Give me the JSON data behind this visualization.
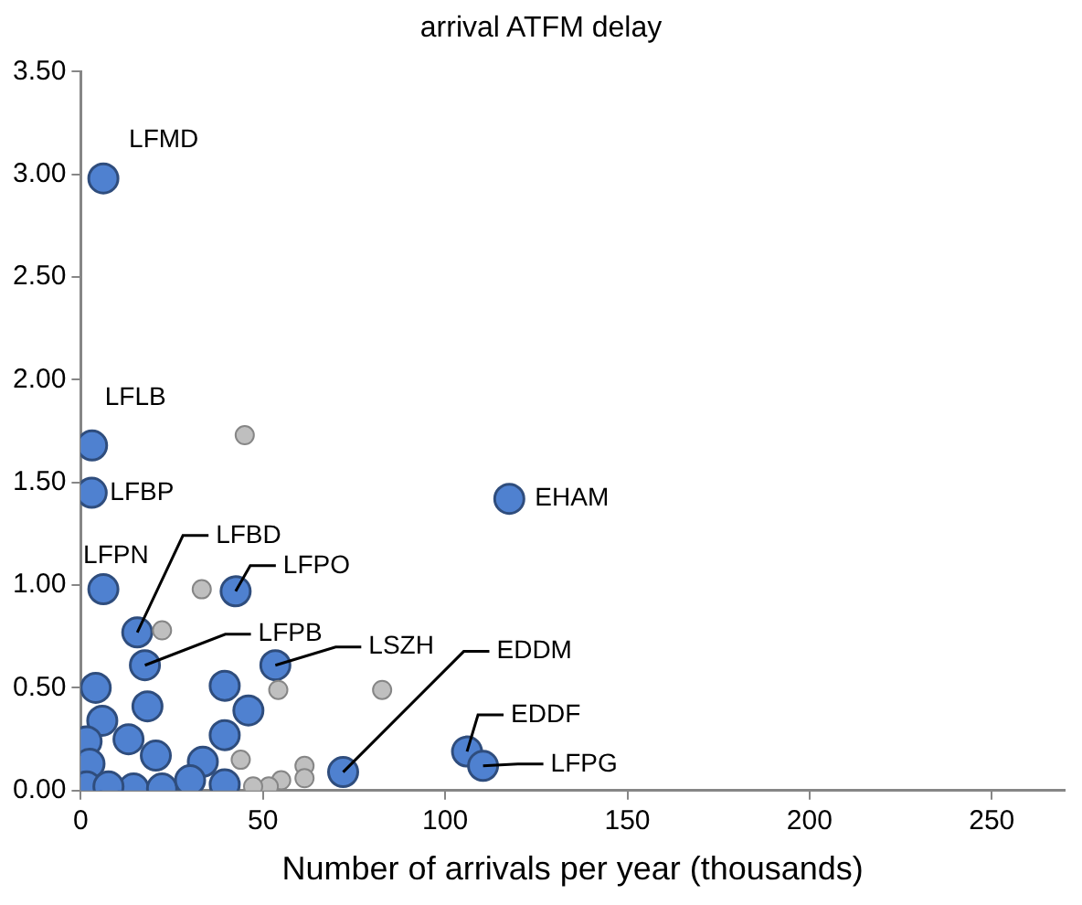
{
  "chart_data": {
    "type": "scatter",
    "title": "arrival ATFM delay",
    "xlabel": "Number of arrivals per year (thousands)",
    "xlim": [
      0,
      270
    ],
    "xticks": [
      0,
      50,
      100,
      150,
      200,
      250
    ],
    "ylim": [
      0,
      3.5
    ],
    "yticks": [
      {
        "value": 0,
        "label": "0.00"
      },
      {
        "value": 0.5,
        "label": "0.50"
      },
      {
        "value": 1,
        "label": "1.00"
      },
      {
        "value": 1.5,
        "label": "1.50"
      },
      {
        "value": 2,
        "label": "2.00"
      },
      {
        "value": 2.5,
        "label": "2.50"
      },
      {
        "value": 3,
        "label": "3.00"
      },
      {
        "value": 3.5,
        "label": "3.50"
      }
    ],
    "grid": false,
    "legend": false,
    "marker": "circle",
    "series": [
      {
        "color": "#bfbfbf",
        "x": [
          33.2,
          22.3,
          54.2,
          82.7,
          43.9,
          61.4,
          61.4,
          55,
          51.6,
          47.3,
          45
        ],
        "values": [
          0.98,
          0.78,
          0.49,
          0.49,
          0.15,
          0.12,
          0.06,
          0.05,
          0.02,
          0.02,
          1.73
        ]
      },
      {
        "color": "#4f81d0",
        "x": [
          6.2,
          3.1,
          3,
          117.6,
          6.2,
          15.5,
          42.5,
          17.6,
          53.4,
          72,
          106,
          110.4,
          4.1,
          18.3,
          39.5,
          46,
          5.9,
          39.5,
          13.1,
          1.6,
          2.4,
          20.6,
          33.5,
          39.5,
          14.5,
          22.3,
          1.6,
          7.6,
          30
        ],
        "values": [
          2.98,
          1.68,
          1.45,
          1.42,
          0.98,
          0.77,
          0.97,
          0.61,
          0.61,
          0.09,
          0.19,
          0.12,
          0.5,
          0.41,
          0.51,
          0.39,
          0.34,
          0.27,
          0.25,
          0.24,
          0.13,
          0.17,
          0.14,
          0.03,
          0.01,
          0.01,
          0.02,
          0.02,
          0.05
        ]
      }
    ],
    "annotations": [
      {
        "text": "LFMD",
        "x": 6.2,
        "y": 2.98
      },
      {
        "text": "LFLB",
        "x": 3.1,
        "y": 1.68
      },
      {
        "text": "LFBP",
        "x": 3,
        "y": 1.45
      },
      {
        "text": "EHAM",
        "x": 117.6,
        "y": 1.42
      },
      {
        "text": "LFPN",
        "x": 6.2,
        "y": 0.98
      },
      {
        "text": "LFBD",
        "x": 15.5,
        "y": 0.77
      },
      {
        "text": "LFPO",
        "x": 42.5,
        "y": 0.97
      },
      {
        "text": "LFPB",
        "x": 17.6,
        "y": 0.61
      },
      {
        "text": "LSZH",
        "x": 53.4,
        "y": 0.61
      },
      {
        "text": "EDDM",
        "x": 72,
        "y": 0.09
      },
      {
        "text": "EDDF",
        "x": 106,
        "y": 0.19
      },
      {
        "text": "LFPG",
        "x": 110.4,
        "y": 0.12
      }
    ]
  }
}
